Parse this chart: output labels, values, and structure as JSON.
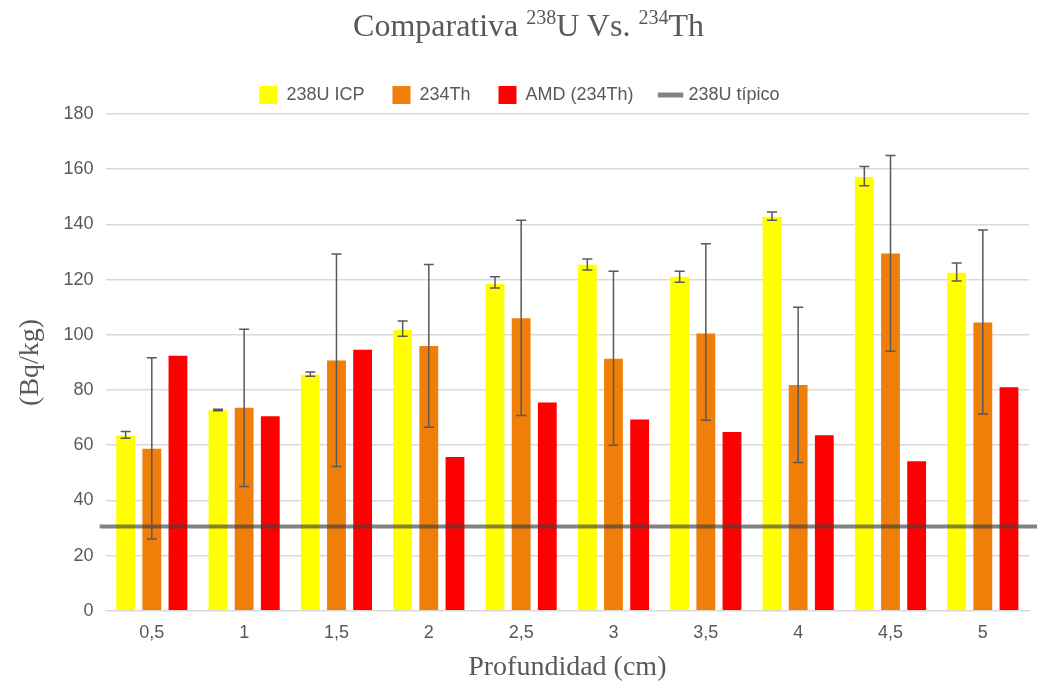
{
  "chart_data": {
    "type": "bar",
    "title": "Comparativa $^{238}$U Vs. $^{234}$Th",
    "xlabel": "Profundidad (cm)",
    "ylabel": "(Bq/kg)",
    "categories": [
      "0,5",
      "1",
      "1,5",
      "2",
      "2,5",
      "3",
      "3,5",
      "4",
      "4,5",
      "5"
    ],
    "series": [
      {
        "name": "238U ICP",
        "color": "#ffff00",
        "values": [
          63.5,
          72.7,
          85.5,
          101.7,
          118.5,
          125.4,
          121,
          142.8,
          157.2,
          122.5
        ],
        "errors": [
          [
            62.5,
            65
          ],
          [
            72.5,
            73
          ],
          [
            85,
            86.5
          ],
          [
            99.5,
            105
          ],
          [
            117,
            121
          ],
          [
            123.5,
            127.5
          ],
          [
            119,
            123
          ],
          [
            141.5,
            144.5
          ],
          [
            154,
            161
          ],
          [
            119.5,
            126
          ]
        ]
      },
      {
        "name": "234Th",
        "color": "#f07f09",
        "values": [
          58.7,
          73.6,
          90.7,
          95.9,
          106,
          91.3,
          100.5,
          81.8,
          129.5,
          104.5
        ],
        "errors": [
          [
            26,
            91.7
          ],
          [
            45,
            102
          ],
          [
            52.3,
            129.3
          ],
          [
            66.5,
            125.5
          ],
          [
            70.8,
            141.5
          ],
          [
            60,
            123
          ],
          [
            69,
            133
          ],
          [
            53.7,
            110
          ],
          [
            94,
            165
          ],
          [
            71.3,
            138
          ]
        ]
      },
      {
        "name": "AMD (234Th)",
        "color": "#ff0000",
        "values": [
          92.4,
          70.5,
          94.6,
          55.7,
          75.5,
          69.3,
          64.8,
          63.6,
          54.2,
          81
        ]
      }
    ],
    "ref_lines": [
      {
        "axis": "y",
        "value": 30.5,
        "label": "238U típico",
        "color": "#404040"
      }
    ],
    "ylim": [
      0,
      180
    ],
    "yticks": [
      0,
      20,
      40,
      60,
      80,
      100,
      120,
      140,
      160,
      180
    ],
    "grid": "y",
    "legend": "top"
  }
}
